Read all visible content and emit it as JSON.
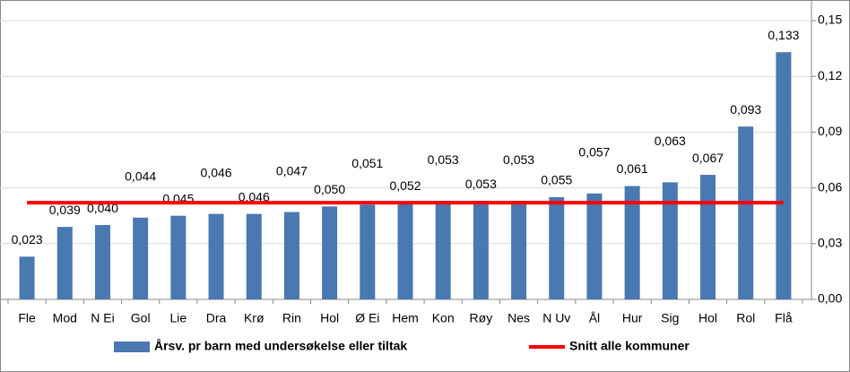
{
  "chart_data": {
    "type": "bar",
    "categories": [
      "Fle",
      "Mod",
      "N Ei",
      "Gol",
      "Lie",
      "Dra",
      "Krø",
      "Rin",
      "Hol",
      "Ø Ei",
      "Hem",
      "Kon",
      "Røy",
      "Nes",
      "N Uv",
      "Ål",
      "Hur",
      "Sig",
      "Hol",
      "Rol",
      "Flå"
    ],
    "series": [
      {
        "name": "Årsv. pr barn med undersøkelse eller tiltak",
        "type": "bar",
        "color": "#4a78b0",
        "values": [
          0.023,
          0.039,
          0.04,
          0.044,
          0.045,
          0.046,
          0.046,
          0.047,
          0.05,
          0.051,
          0.052,
          0.053,
          0.053,
          0.053,
          0.055,
          0.057,
          0.061,
          0.063,
          0.067,
          0.093,
          0.133
        ],
        "value_labels": [
          "0,023",
          "0,039",
          "0,040",
          "0,044",
          "0,045",
          "0,046",
          "0,046",
          "0,047",
          "0,050",
          "0,051",
          "0,052",
          "0,053",
          "0,053",
          "0,053",
          "0,055",
          "0,057",
          "0,061",
          "0,063",
          "0,067",
          "0,093",
          "0,133"
        ]
      },
      {
        "name": "Snitt alle kommuner",
        "type": "line",
        "color": "#ff0000",
        "values": [
          0.052,
          0.052,
          0.052,
          0.052,
          0.052,
          0.052,
          0.052,
          0.052,
          0.052,
          0.052,
          0.052,
          0.052,
          0.052,
          0.052,
          0.052,
          0.052,
          0.052,
          0.052,
          0.052,
          0.052,
          0.052
        ]
      }
    ],
    "ylim": [
      0,
      0.15
    ],
    "yticks": [
      {
        "value": 0,
        "label": "0,00"
      },
      {
        "value": 0.03,
        "label": "0,03"
      },
      {
        "value": 0.06,
        "label": "0,06"
      },
      {
        "value": 0.09,
        "label": "0,09"
      },
      {
        "value": 0.12,
        "label": "0,12"
      },
      {
        "value": 0.15,
        "label": "0,15"
      }
    ],
    "grid": true,
    "legend": "bottom"
  }
}
